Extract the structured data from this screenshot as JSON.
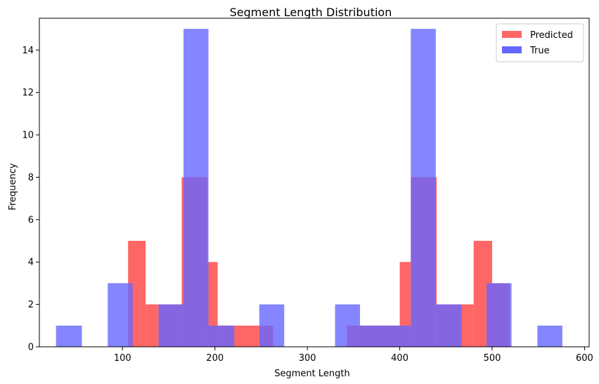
{
  "chart_data": {
    "type": "bar",
    "title": "Segment Length Distribution",
    "xlabel": "Segment Length",
    "ylabel": "Frequency",
    "xlim": [
      10,
      605
    ],
    "ylim": [
      0,
      15.5
    ],
    "xticks": [
      100,
      200,
      300,
      400,
      500,
      600
    ],
    "yticks": [
      0,
      2,
      4,
      6,
      8,
      10,
      12,
      14
    ],
    "legend_position": "top-right",
    "grid": false,
    "series": [
      {
        "name": "Predicted",
        "color": "#ff6666",
        "bins": [
          {
            "x0": 106,
            "x1": 125,
            "y": 5
          },
          {
            "x0": 125,
            "x1": 138,
            "y": 2
          },
          {
            "x0": 138,
            "x1": 164,
            "y": 2
          },
          {
            "x0": 164,
            "x1": 192,
            "y": 8
          },
          {
            "x0": 192,
            "x1": 203,
            "y": 4
          },
          {
            "x0": 203,
            "x1": 220,
            "y": 1
          },
          {
            "x0": 220,
            "x1": 248,
            "y": 1
          },
          {
            "x0": 248,
            "x1": 263,
            "y": 1
          },
          {
            "x0": 343,
            "x1": 356,
            "y": 1
          },
          {
            "x0": 356,
            "x1": 384,
            "y": 1
          },
          {
            "x0": 384,
            "x1": 400,
            "y": 1
          },
          {
            "x0": 400,
            "x1": 412,
            "y": 4
          },
          {
            "x0": 412,
            "x1": 440,
            "y": 8
          },
          {
            "x0": 440,
            "x1": 466,
            "y": 2
          },
          {
            "x0": 466,
            "x1": 480,
            "y": 2
          },
          {
            "x0": 480,
            "x1": 500,
            "y": 5
          },
          {
            "x0": 500,
            "x1": 519,
            "y": 3
          }
        ]
      },
      {
        "name": "True",
        "color": "#6666ff",
        "bins": [
          {
            "x0": 28,
            "x1": 56,
            "y": 1
          },
          {
            "x0": 84,
            "x1": 111,
            "y": 3
          },
          {
            "x0": 139,
            "x1": 166,
            "y": 2
          },
          {
            "x0": 166,
            "x1": 193,
            "y": 15
          },
          {
            "x0": 193,
            "x1": 221,
            "y": 1
          },
          {
            "x0": 248,
            "x1": 275,
            "y": 2
          },
          {
            "x0": 330,
            "x1": 357,
            "y": 2
          },
          {
            "x0": 357,
            "x1": 385,
            "y": 1
          },
          {
            "x0": 385,
            "x1": 412,
            "y": 1
          },
          {
            "x0": 412,
            "x1": 439,
            "y": 15
          },
          {
            "x0": 439,
            "x1": 467,
            "y": 2
          },
          {
            "x0": 494,
            "x1": 521,
            "y": 3
          },
          {
            "x0": 549,
            "x1": 576,
            "y": 1
          }
        ]
      }
    ]
  }
}
